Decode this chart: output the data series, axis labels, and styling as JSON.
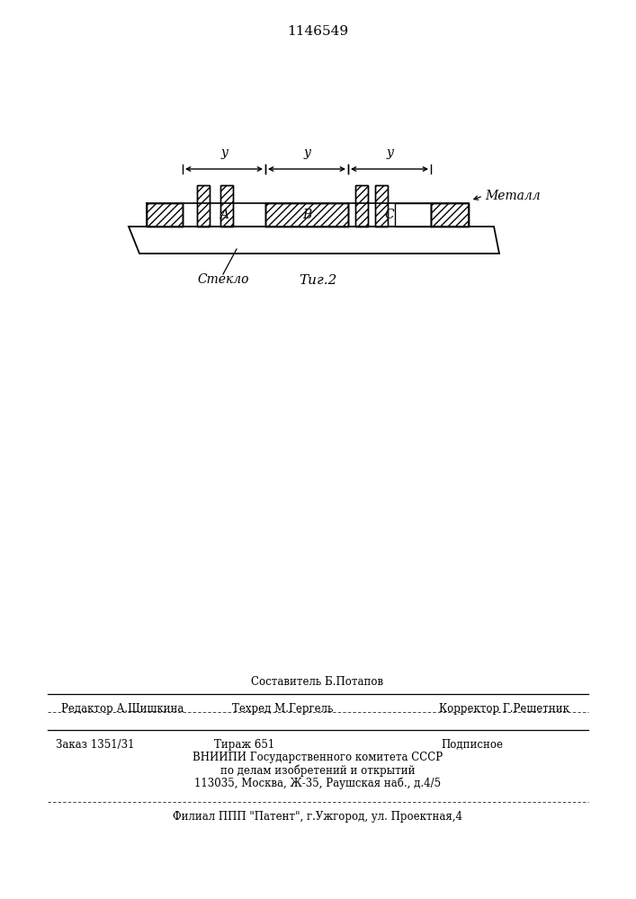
{
  "title": "1146549",
  "fig_caption": "Τиг.2",
  "metal_label": "Металл",
  "glass_label": "Стекло",
  "y_label": "y",
  "dim_labels": [
    "A",
    "B",
    "C"
  ],
  "footer_line1": "Составитель Б.Потапов",
  "footer_line2_left": "Редактор А.Шишкина",
  "footer_line2_mid": "Техред М.Гергель",
  "footer_line2_right": "Корректор Г.Решетник",
  "footer_line3_left": "Заказ 1351/31",
  "footer_line3_mid": "Тираж 651",
  "footer_line3_right": "Подписное",
  "footer_line4": "ВНИИПИ Государственного комитета СССР",
  "footer_line5": "по делам изобретений и открытий",
  "footer_line6": "113035, Москва, Ж-35, Раушская наб., д.4/5",
  "footer_line7": "Филиал ППП \"Патент\", г.Ужгород, ул. Проектная,4",
  "bg_color": "#ffffff"
}
